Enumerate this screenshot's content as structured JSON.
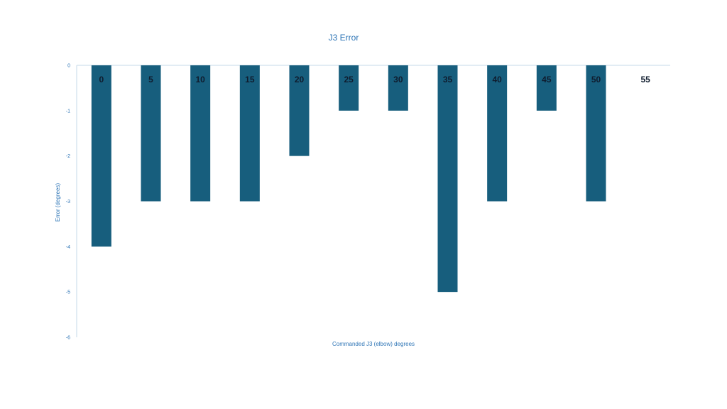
{
  "chart_data": {
    "type": "bar",
    "title": "J3 Error",
    "xlabel": "Commanded J3 (elbow) degrees",
    "ylabel": "Error (degrees)",
    "categories": [
      "0",
      "5",
      "10",
      "15",
      "20",
      "25",
      "30",
      "35",
      "40",
      "45",
      "50",
      "55"
    ],
    "values": [
      -4,
      -3,
      -3,
      -3,
      -2,
      -1,
      -1,
      -5,
      -3,
      -1,
      -3,
      0
    ],
    "ylim": [
      -6,
      0
    ],
    "yticks": [
      "0",
      "-1",
      "-2",
      "-3",
      "-4",
      "-5",
      "-6"
    ],
    "grid": false,
    "legend": "none",
    "colors": {
      "bar": "#175e7d",
      "text": "#2e75b6",
      "axis": "#c5d8e8",
      "category_label": "#0f1c2e"
    }
  }
}
